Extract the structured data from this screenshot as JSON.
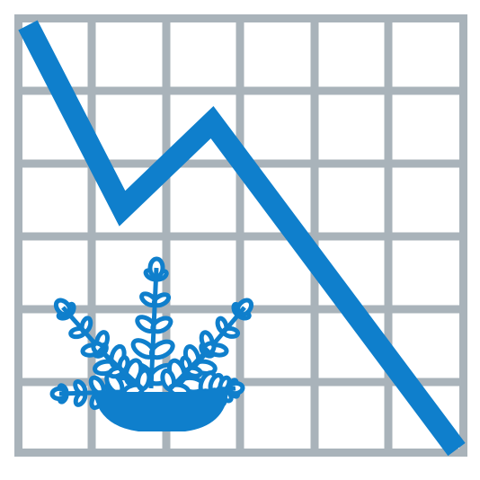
{
  "icon": {
    "name": "declining-chart-with-fern-plant",
    "colors": {
      "grid": "#a9b3ba",
      "line": "#0f7fcc",
      "plant": "#0f7fcc",
      "background": "#ffffff"
    }
  }
}
